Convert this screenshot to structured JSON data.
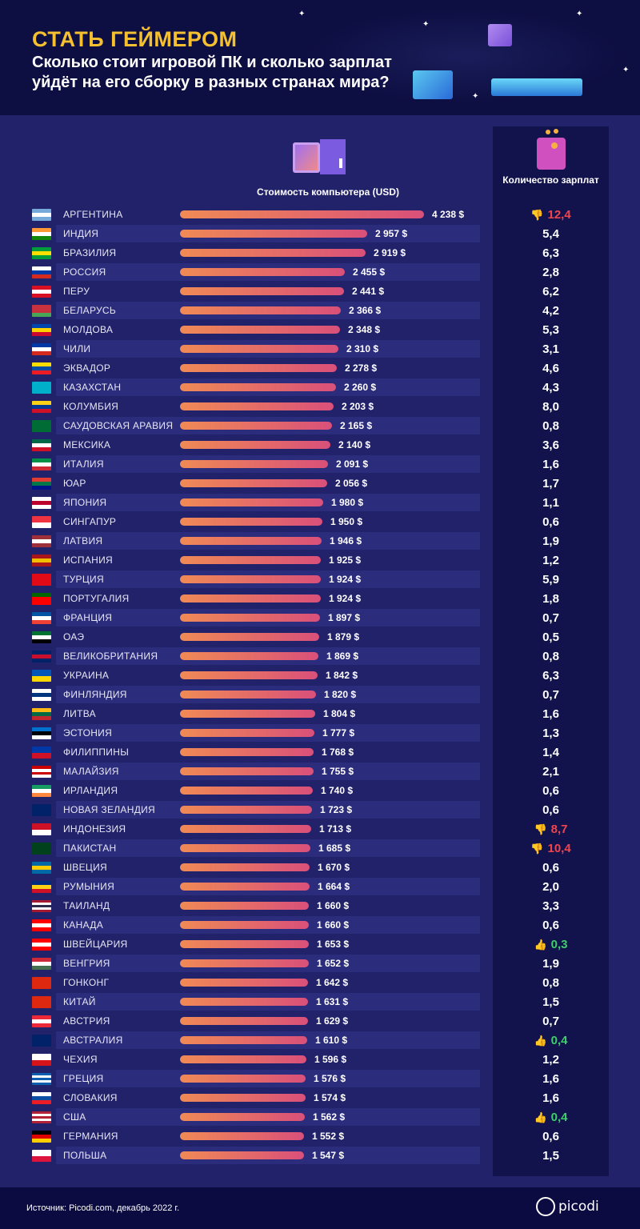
{
  "header": {
    "title": "СТАТЬ ГЕЙМЕРОМ",
    "subtitle": "Сколько стоит игровой ПК и сколько зарплат уйдёт на его сборку в разных странах мира?"
  },
  "footer": {
    "source": "Источник: Picodi.com, декабрь 2022 г.",
    "logo": "picodi"
  },
  "colors": {
    "title": "#f5c030",
    "bad": "#f0454f",
    "good": "#3fce6b",
    "bar_start": "#f08a55",
    "bar_end": "#d9507a"
  },
  "chart_data": {
    "type": "bar",
    "title": "Стоимость компьютера (USD)",
    "secondary_title": "Количество зарплат",
    "value_suffix": " $",
    "rows": [
      {
        "country": "АРГЕНТИНА",
        "usd": 4238,
        "usd_label": "4 238 $",
        "salaries": "12,4",
        "mark": "bad",
        "flag": [
          "#75aadb",
          "#fff",
          "#75aadb"
        ]
      },
      {
        "country": "ИНДИЯ",
        "usd": 2957,
        "usd_label": "2 957 $",
        "salaries": "5,4",
        "mark": "",
        "flag": [
          "#ff9933",
          "#fff",
          "#138808"
        ]
      },
      {
        "country": "БРАЗИЛИЯ",
        "usd": 2919,
        "usd_label": "2 919 $",
        "salaries": "6,3",
        "mark": "",
        "flag": [
          "#009c3b",
          "#ffdf00",
          "#009c3b"
        ]
      },
      {
        "country": "РОССИЯ",
        "usd": 2455,
        "usd_label": "2 455 $",
        "salaries": "2,8",
        "mark": "",
        "flag": [
          "#fff",
          "#0039a6",
          "#d52b1e"
        ]
      },
      {
        "country": "ПЕРУ",
        "usd": 2441,
        "usd_label": "2 441 $",
        "salaries": "6,2",
        "mark": "",
        "flag": [
          "#d91023",
          "#fff",
          "#d91023"
        ]
      },
      {
        "country": "БЕЛАРУСЬ",
        "usd": 2366,
        "usd_label": "2 366 $",
        "salaries": "4,2",
        "mark": "",
        "flag": [
          "#c8313e",
          "#c8313e",
          "#4aa657"
        ]
      },
      {
        "country": "МОЛДОВА",
        "usd": 2348,
        "usd_label": "2 348 $",
        "salaries": "5,3",
        "mark": "",
        "flag": [
          "#0046ae",
          "#ffd200",
          "#cc092f"
        ]
      },
      {
        "country": "ЧИЛИ",
        "usd": 2310,
        "usd_label": "2 310 $",
        "salaries": "3,1",
        "mark": "",
        "flag": [
          "#0039a6",
          "#fff",
          "#d52b1e"
        ]
      },
      {
        "country": "ЭКВАДОР",
        "usd": 2278,
        "usd_label": "2 278 $",
        "salaries": "4,6",
        "mark": "",
        "flag": [
          "#ffdd00",
          "#034ea2",
          "#ed1c24"
        ]
      },
      {
        "country": "КАЗАХСТАН",
        "usd": 2260,
        "usd_label": "2 260 $",
        "salaries": "4,3",
        "mark": "",
        "flag": [
          "#00afca",
          "#00afca",
          "#00afca"
        ]
      },
      {
        "country": "КОЛУМБИЯ",
        "usd": 2203,
        "usd_label": "2 203 $",
        "salaries": "8,0",
        "mark": "",
        "flag": [
          "#fcd116",
          "#003893",
          "#ce1126"
        ]
      },
      {
        "country": "САУДОВСКАЯ АРАВИЯ",
        "usd": 2165,
        "usd_label": "2 165 $",
        "salaries": "0,8",
        "mark": "",
        "flag": [
          "#006c35",
          "#006c35",
          "#006c35"
        ]
      },
      {
        "country": "МЕКСИКА",
        "usd": 2140,
        "usd_label": "2 140 $",
        "salaries": "3,6",
        "mark": "",
        "flag": [
          "#006847",
          "#fff",
          "#ce1126"
        ]
      },
      {
        "country": "ИТАЛИЯ",
        "usd": 2091,
        "usd_label": "2 091 $",
        "salaries": "1,6",
        "mark": "",
        "flag": [
          "#009246",
          "#fff",
          "#ce2b37"
        ]
      },
      {
        "country": "ЮАР",
        "usd": 2056,
        "usd_label": "2 056 $",
        "salaries": "1,7",
        "mark": "",
        "flag": [
          "#e03c31",
          "#007749",
          "#001489"
        ]
      },
      {
        "country": "ЯПОНИЯ",
        "usd": 1980,
        "usd_label": "1 980 $",
        "salaries": "1,1",
        "mark": "",
        "flag": [
          "#fff",
          "#bc002d",
          "#fff"
        ]
      },
      {
        "country": "СИНГАПУР",
        "usd": 1950,
        "usd_label": "1 950 $",
        "salaries": "0,6",
        "mark": "",
        "flag": [
          "#ef3340",
          "#fff"
        ]
      },
      {
        "country": "ЛАТВИЯ",
        "usd": 1946,
        "usd_label": "1 946 $",
        "salaries": "1,9",
        "mark": "",
        "flag": [
          "#9e3039",
          "#fff",
          "#9e3039"
        ]
      },
      {
        "country": "ИСПАНИЯ",
        "usd": 1925,
        "usd_label": "1 925 $",
        "salaries": "1,2",
        "mark": "",
        "flag": [
          "#aa151b",
          "#f1bf00",
          "#aa151b"
        ]
      },
      {
        "country": "ТУРЦИЯ",
        "usd": 1924,
        "usd_label": "1 924 $",
        "salaries": "5,9",
        "mark": "",
        "flag": [
          "#e30a17",
          "#e30a17",
          "#e30a17"
        ]
      },
      {
        "country": "ПОРТУГАЛИЯ",
        "usd": 1924,
        "usd_label": "1 924 $",
        "salaries": "1,8",
        "mark": "",
        "flag": [
          "#006600",
          "#ff0000",
          "#ff0000"
        ]
      },
      {
        "country": "ФРАНЦИЯ",
        "usd": 1897,
        "usd_label": "1 897 $",
        "salaries": "0,7",
        "mark": "",
        "flag": [
          "#0055a4",
          "#fff",
          "#ef4135"
        ]
      },
      {
        "country": "ОАЭ",
        "usd": 1879,
        "usd_label": "1 879 $",
        "salaries": "0,5",
        "mark": "",
        "flag": [
          "#00732f",
          "#fff",
          "#000"
        ]
      },
      {
        "country": "ВЕЛИКОБРИТАНИЯ",
        "usd": 1869,
        "usd_label": "1 869 $",
        "salaries": "0,8",
        "mark": "",
        "flag": [
          "#012169",
          "#c8102e",
          "#012169"
        ]
      },
      {
        "country": "УКРАИНА",
        "usd": 1842,
        "usd_label": "1 842 $",
        "salaries": "6,3",
        "mark": "",
        "flag": [
          "#0057b7",
          "#ffd700"
        ]
      },
      {
        "country": "ФИНЛЯНДИЯ",
        "usd": 1820,
        "usd_label": "1 820 $",
        "salaries": "0,7",
        "mark": "",
        "flag": [
          "#fff",
          "#003580",
          "#fff"
        ]
      },
      {
        "country": "ЛИТВА",
        "usd": 1804,
        "usd_label": "1 804 $",
        "salaries": "1,6",
        "mark": "",
        "flag": [
          "#fdb913",
          "#006a44",
          "#c1272d"
        ]
      },
      {
        "country": "ЭСТОНИЯ",
        "usd": 1777,
        "usd_label": "1 777 $",
        "salaries": "1,3",
        "mark": "",
        "flag": [
          "#0072ce",
          "#000",
          "#fff"
        ]
      },
      {
        "country": "ФИЛИППИНЫ",
        "usd": 1768,
        "usd_label": "1 768 $",
        "salaries": "1,4",
        "mark": "",
        "flag": [
          "#0038a8",
          "#ce1126"
        ]
      },
      {
        "country": "МАЛАЙЗИЯ",
        "usd": 1755,
        "usd_label": "1 755 $",
        "salaries": "2,1",
        "mark": "",
        "flag": [
          "#cc0001",
          "#fff",
          "#cc0001",
          "#fff"
        ]
      },
      {
        "country": "ИРЛАНДИЯ",
        "usd": 1740,
        "usd_label": "1 740 $",
        "salaries": "0,6",
        "mark": "",
        "flag": [
          "#169b62",
          "#fff",
          "#ff883e"
        ]
      },
      {
        "country": "НОВАЯ ЗЕЛАНДИЯ",
        "usd": 1723,
        "usd_label": "1 723 $",
        "salaries": "0,6",
        "mark": "",
        "flag": [
          "#012169",
          "#012169",
          "#012169"
        ]
      },
      {
        "country": "ИНДОНЕЗИЯ",
        "usd": 1713,
        "usd_label": "1 713 $",
        "salaries": "8,7",
        "mark": "bad",
        "flag": [
          "#ce1126",
          "#fff"
        ]
      },
      {
        "country": "ПАКИСТАН",
        "usd": 1685,
        "usd_label": "1 685 $",
        "salaries": "10,4",
        "mark": "bad",
        "flag": [
          "#01411c",
          "#01411c",
          "#01411c"
        ]
      },
      {
        "country": "ШВЕЦИЯ",
        "usd": 1670,
        "usd_label": "1 670 $",
        "salaries": "0,6",
        "mark": "",
        "flag": [
          "#006aa7",
          "#fecc00",
          "#006aa7"
        ]
      },
      {
        "country": "РУМЫНИЯ",
        "usd": 1664,
        "usd_label": "1 664 $",
        "salaries": "2,0",
        "mark": "",
        "flag": [
          "#002b7f",
          "#fcd116",
          "#ce1126"
        ]
      },
      {
        "country": "ТАИЛАНД",
        "usd": 1660,
        "usd_label": "1 660 $",
        "salaries": "3,3",
        "mark": "",
        "flag": [
          "#a51931",
          "#fff",
          "#2d2a4a",
          "#fff",
          "#a51931"
        ]
      },
      {
        "country": "КАНАДА",
        "usd": 1660,
        "usd_label": "1 660 $",
        "salaries": "0,6",
        "mark": "",
        "flag": [
          "#ff0000",
          "#fff",
          "#ff0000"
        ]
      },
      {
        "country": "ШВЕЙЦАРИЯ",
        "usd": 1653,
        "usd_label": "1 653 $",
        "salaries": "0,3",
        "mark": "good",
        "flag": [
          "#ff0000",
          "#fff",
          "#ff0000"
        ]
      },
      {
        "country": "ВЕНГРИЯ",
        "usd": 1652,
        "usd_label": "1 652 $",
        "salaries": "1,9",
        "mark": "",
        "flag": [
          "#ce2939",
          "#fff",
          "#477050"
        ]
      },
      {
        "country": "ГОНКОНГ",
        "usd": 1642,
        "usd_label": "1 642 $",
        "salaries": "0,8",
        "mark": "",
        "flag": [
          "#de2910",
          "#de2910",
          "#de2910"
        ]
      },
      {
        "country": "КИТАЙ",
        "usd": 1631,
        "usd_label": "1 631 $",
        "salaries": "1,5",
        "mark": "",
        "flag": [
          "#de2910",
          "#de2910",
          "#de2910"
        ]
      },
      {
        "country": "АВСТРИЯ",
        "usd": 1629,
        "usd_label": "1 629 $",
        "salaries": "0,7",
        "mark": "",
        "flag": [
          "#ed2939",
          "#fff",
          "#ed2939"
        ]
      },
      {
        "country": "АВСТРАЛИЯ",
        "usd": 1610,
        "usd_label": "1 610 $",
        "salaries": "0,4",
        "mark": "good",
        "flag": [
          "#012169",
          "#012169",
          "#012169"
        ]
      },
      {
        "country": "ЧЕХИЯ",
        "usd": 1596,
        "usd_label": "1 596 $",
        "salaries": "1,2",
        "mark": "",
        "flag": [
          "#fff",
          "#d7141a"
        ]
      },
      {
        "country": "ГРЕЦИЯ",
        "usd": 1576,
        "usd_label": "1 576 $",
        "salaries": "1,6",
        "mark": "",
        "flag": [
          "#0d5eaf",
          "#fff",
          "#0d5eaf",
          "#fff",
          "#0d5eaf"
        ]
      },
      {
        "country": "СЛОВАКИЯ",
        "usd": 1574,
        "usd_label": "1 574 $",
        "salaries": "1,6",
        "mark": "",
        "flag": [
          "#fff",
          "#0b4ea2",
          "#ee1c25"
        ]
      },
      {
        "country": "США",
        "usd": 1562,
        "usd_label": "1 562 $",
        "salaries": "0,4",
        "mark": "good",
        "flag": [
          "#b22234",
          "#fff",
          "#b22234",
          "#fff",
          "#b22234"
        ]
      },
      {
        "country": "ГЕРМАНИЯ",
        "usd": 1552,
        "usd_label": "1 552 $",
        "salaries": "0,6",
        "mark": "",
        "flag": [
          "#000",
          "#dd0000",
          "#ffce00"
        ]
      },
      {
        "country": "ПОЛЬША",
        "usd": 1547,
        "usd_label": "1 547 $",
        "salaries": "1,5",
        "mark": "",
        "flag": [
          "#fff",
          "#dc143c"
        ]
      }
    ]
  }
}
